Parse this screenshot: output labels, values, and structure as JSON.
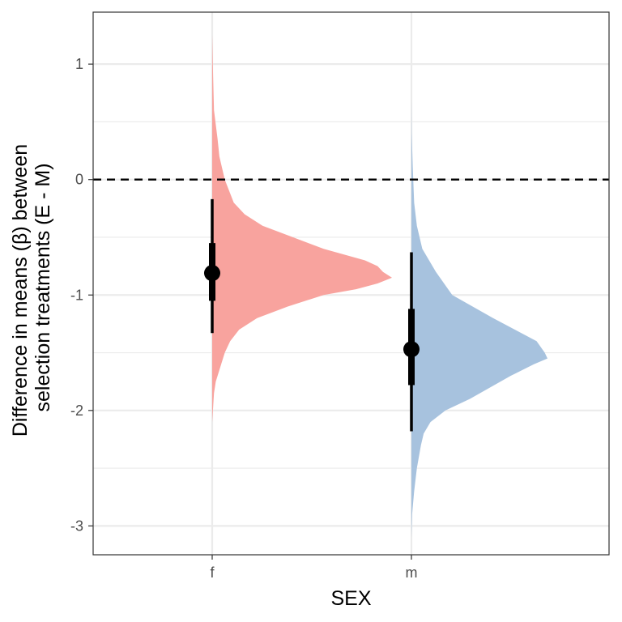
{
  "chart_data": {
    "type": "half-violin with point-interval",
    "xlabel": "SEX",
    "ylabel_lines": [
      "Difference in means (β) between",
      "selection treatments (E - M)"
    ],
    "categories": [
      "f",
      "m"
    ],
    "ylim": [
      -3.25,
      1.45
    ],
    "y_ticks": [
      1,
      0,
      -1,
      -2,
      -3
    ],
    "y_tick_labels": [
      "1",
      "0",
      "-1",
      "-2",
      "-3"
    ],
    "reference_line": {
      "y": 0,
      "style": "dashed"
    },
    "grid": true,
    "legend": "none",
    "series": [
      {
        "category": "f",
        "color": "#f8a39e",
        "point": -0.81,
        "interval_66": [
          -1.05,
          -0.55
        ],
        "interval_95": [
          -1.33,
          -0.17
        ],
        "density": [
          [
            1.25,
            0.0
          ],
          [
            0.9,
            0.005
          ],
          [
            0.6,
            0.01
          ],
          [
            0.35,
            0.03
          ],
          [
            0.2,
            0.04
          ],
          [
            0.0,
            0.07
          ],
          [
            -0.2,
            0.12
          ],
          [
            -0.3,
            0.18
          ],
          [
            -0.4,
            0.28
          ],
          [
            -0.5,
            0.45
          ],
          [
            -0.6,
            0.62
          ],
          [
            -0.7,
            0.85
          ],
          [
            -0.75,
            0.92
          ],
          [
            -0.8,
            0.95
          ],
          [
            -0.85,
            1.0
          ],
          [
            -0.9,
            0.92
          ],
          [
            -0.95,
            0.8
          ],
          [
            -1.0,
            0.62
          ],
          [
            -1.1,
            0.42
          ],
          [
            -1.2,
            0.25
          ],
          [
            -1.3,
            0.15
          ],
          [
            -1.4,
            0.1
          ],
          [
            -1.5,
            0.07
          ],
          [
            -1.6,
            0.05
          ],
          [
            -1.75,
            0.02
          ],
          [
            -1.85,
            0.01
          ],
          [
            -2.1,
            0.0
          ]
        ]
      },
      {
        "category": "m",
        "color": "#a7c2de",
        "point": -1.47,
        "interval_66": [
          -1.78,
          -1.12
        ],
        "interval_95": [
          -2.18,
          -0.63
        ],
        "density": [
          [
            0.7,
            0.0
          ],
          [
            0.4,
            0.002
          ],
          [
            0.1,
            0.01
          ],
          [
            -0.2,
            0.02
          ],
          [
            -0.4,
            0.04
          ],
          [
            -0.6,
            0.08
          ],
          [
            -0.8,
            0.18
          ],
          [
            -1.0,
            0.3
          ],
          [
            -1.1,
            0.45
          ],
          [
            -1.2,
            0.6
          ],
          [
            -1.3,
            0.76
          ],
          [
            -1.4,
            0.92
          ],
          [
            -1.5,
            0.98
          ],
          [
            -1.55,
            1.0
          ],
          [
            -1.6,
            0.9
          ],
          [
            -1.7,
            0.73
          ],
          [
            -1.8,
            0.58
          ],
          [
            -1.9,
            0.43
          ],
          [
            -2.0,
            0.25
          ],
          [
            -2.1,
            0.14
          ],
          [
            -2.2,
            0.09
          ],
          [
            -2.3,
            0.07
          ],
          [
            -2.5,
            0.04
          ],
          [
            -2.7,
            0.02
          ],
          [
            -2.9,
            0.005
          ],
          [
            -3.1,
            0.0
          ]
        ]
      }
    ]
  }
}
